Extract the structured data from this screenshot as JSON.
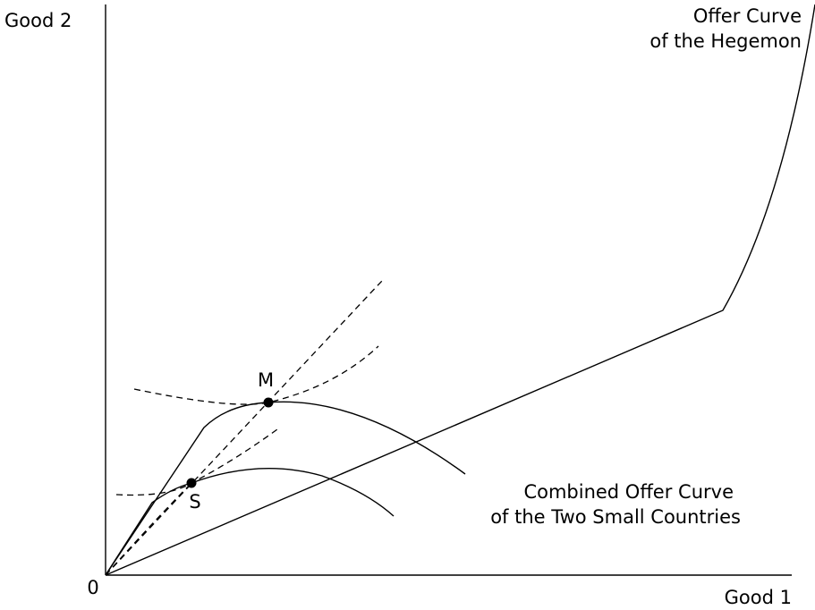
{
  "axes": {
    "y_label": "Good 2",
    "x_label": "Good 1",
    "origin_label": "0"
  },
  "hegemon_label": {
    "line1": "Offer Curve",
    "line2": "of the Hegemon"
  },
  "combined_label": {
    "line1": "Combined Offer Curve",
    "line2": "of the Two Small Countries"
  },
  "points": {
    "m": "M",
    "s": "S"
  }
}
